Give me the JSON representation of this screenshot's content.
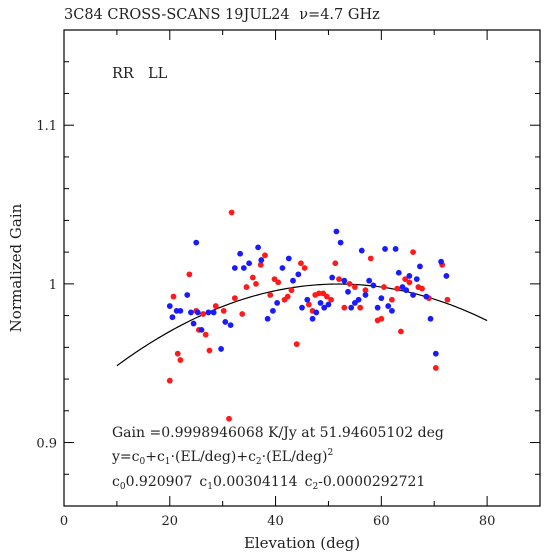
{
  "chart_data": {
    "type": "scatter",
    "title": "3C84 CROSS-SCANS 19JUL24",
    "title_freq": "ν=4.7 GHz",
    "xlabel": "Elevation (deg)",
    "ylabel": "Normalized Gain",
    "xlim": [
      0,
      90
    ],
    "ylim": [
      0.86,
      1.16
    ],
    "xticks": [
      0,
      20,
      40,
      60,
      80
    ],
    "yticks": [
      0.9,
      1.0,
      1.1
    ],
    "ytick_labels": [
      "0.9",
      "1",
      "1.1"
    ],
    "legend": {
      "position": "top-left",
      "entries": [
        "RR",
        "LL"
      ]
    },
    "colors": {
      "RR": "#ff1a1a",
      "LL": "#1a1aff",
      "fit": "#000000"
    },
    "series": [
      {
        "name": "RR",
        "points": [
          [
            20.0,
            0.939
          ],
          [
            20.7,
            0.992
          ],
          [
            21.5,
            0.956
          ],
          [
            22.0,
            0.952
          ],
          [
            23.7,
            1.006
          ],
          [
            25.0,
            0.983
          ],
          [
            25.5,
            0.971
          ],
          [
            26.3,
            0.981
          ],
          [
            26.8,
            0.968
          ],
          [
            27.5,
            0.958
          ],
          [
            28.7,
            0.986
          ],
          [
            30.2,
            0.983
          ],
          [
            31.2,
            0.915
          ],
          [
            31.7,
            1.045
          ],
          [
            32.3,
            0.991
          ],
          [
            33.7,
            0.981
          ],
          [
            34.5,
            0.998
          ],
          [
            35.7,
            1.004
          ],
          [
            36.3,
            1.0
          ],
          [
            37.2,
            1.012
          ],
          [
            38.0,
            1.018
          ],
          [
            39.0,
            0.993
          ],
          [
            39.8,
            1.003
          ],
          [
            40.5,
            1.001
          ],
          [
            41.7,
            0.99
          ],
          [
            42.3,
            0.992
          ],
          [
            43.0,
            0.996
          ],
          [
            44.0,
            0.962
          ],
          [
            44.8,
            1.013
          ],
          [
            45.5,
            1.01
          ],
          [
            46.3,
            0.987
          ],
          [
            47.0,
            0.983
          ],
          [
            47.5,
            0.993
          ],
          [
            48.2,
            0.994
          ],
          [
            49.0,
            0.994
          ],
          [
            49.7,
            0.992
          ],
          [
            50.5,
            0.99
          ],
          [
            51.3,
            1.013
          ],
          [
            52.0,
            1.003
          ],
          [
            53.0,
            0.985
          ],
          [
            54.0,
            1.0
          ],
          [
            55.0,
            0.998
          ],
          [
            56.0,
            0.985
          ],
          [
            57.0,
            0.996
          ],
          [
            58.0,
            1.016
          ],
          [
            59.3,
            0.977
          ],
          [
            60.0,
            0.978
          ],
          [
            60.5,
            0.998
          ],
          [
            62.0,
            0.99
          ],
          [
            63.0,
            0.997
          ],
          [
            63.7,
            0.97
          ],
          [
            64.5,
            1.003
          ],
          [
            65.3,
            1.001
          ],
          [
            66.0,
            1.02
          ],
          [
            67.0,
            0.998
          ],
          [
            67.7,
            0.997
          ],
          [
            69.0,
            0.991
          ],
          [
            70.3,
            0.947
          ],
          [
            71.5,
            1.012
          ],
          [
            72.5,
            0.99
          ]
        ]
      },
      {
        "name": "LL",
        "points": [
          [
            20.0,
            0.986
          ],
          [
            20.5,
            0.979
          ],
          [
            21.3,
            0.983
          ],
          [
            22.0,
            0.983
          ],
          [
            23.3,
            0.993
          ],
          [
            24.0,
            0.982
          ],
          [
            24.5,
            0.975
          ],
          [
            25.0,
            1.026
          ],
          [
            25.3,
            0.982
          ],
          [
            26.0,
            0.971
          ],
          [
            27.3,
            0.982
          ],
          [
            28.3,
            0.982
          ],
          [
            29.7,
            0.959
          ],
          [
            30.5,
            0.976
          ],
          [
            31.5,
            0.974
          ],
          [
            32.3,
            1.01
          ],
          [
            33.3,
            1.019
          ],
          [
            34.0,
            1.01
          ],
          [
            35.0,
            1.013
          ],
          [
            36.7,
            1.023
          ],
          [
            37.3,
            1.015
          ],
          [
            38.5,
            0.978
          ],
          [
            39.5,
            0.983
          ],
          [
            40.3,
            0.988
          ],
          [
            41.3,
            1.01
          ],
          [
            42.5,
            1.016
          ],
          [
            43.3,
            1.002
          ],
          [
            44.3,
            1.006
          ],
          [
            45.0,
            0.985
          ],
          [
            46.0,
            0.99
          ],
          [
            47.0,
            0.978
          ],
          [
            47.7,
            0.982
          ],
          [
            48.5,
            0.988
          ],
          [
            49.2,
            0.985
          ],
          [
            50.0,
            0.987
          ],
          [
            50.7,
            1.004
          ],
          [
            51.5,
            1.033
          ],
          [
            52.3,
            1.026
          ],
          [
            53.0,
            1.002
          ],
          [
            53.7,
            0.995
          ],
          [
            54.3,
            0.985
          ],
          [
            55.0,
            0.988
          ],
          [
            55.7,
            0.99
          ],
          [
            56.3,
            1.021
          ],
          [
            57.0,
            0.993
          ],
          [
            57.7,
            1.002
          ],
          [
            58.5,
            0.999
          ],
          [
            59.3,
            0.985
          ],
          [
            60.0,
            0.991
          ],
          [
            60.7,
            1.022
          ],
          [
            61.3,
            0.986
          ],
          [
            62.0,
            0.983
          ],
          [
            62.7,
            1.022
          ],
          [
            63.3,
            1.007
          ],
          [
            64.0,
            0.998
          ],
          [
            64.7,
            0.996
          ],
          [
            65.3,
            1.005
          ],
          [
            66.0,
            0.993
          ],
          [
            66.7,
            1.003
          ],
          [
            67.3,
            1.011
          ],
          [
            68.5,
            0.992
          ],
          [
            69.3,
            0.978
          ],
          [
            70.3,
            0.956
          ],
          [
            71.3,
            1.014
          ],
          [
            72.3,
            1.005
          ]
        ]
      }
    ],
    "fit": {
      "c0": 0.920907,
      "c1": 0.00304114,
      "c2": -2.92721e-05,
      "x_range": [
        10,
        80
      ]
    },
    "annotations": {
      "line1": "Gain =0.9998946068 K/Jy at 51.94605102 deg",
      "line2_plain": "y=c0+c1·(EL/deg)+c2·(EL/deg)2",
      "line3_plain": "c0=0.920907 c1=0.00304114 c2=−2.92721e−05"
    }
  }
}
